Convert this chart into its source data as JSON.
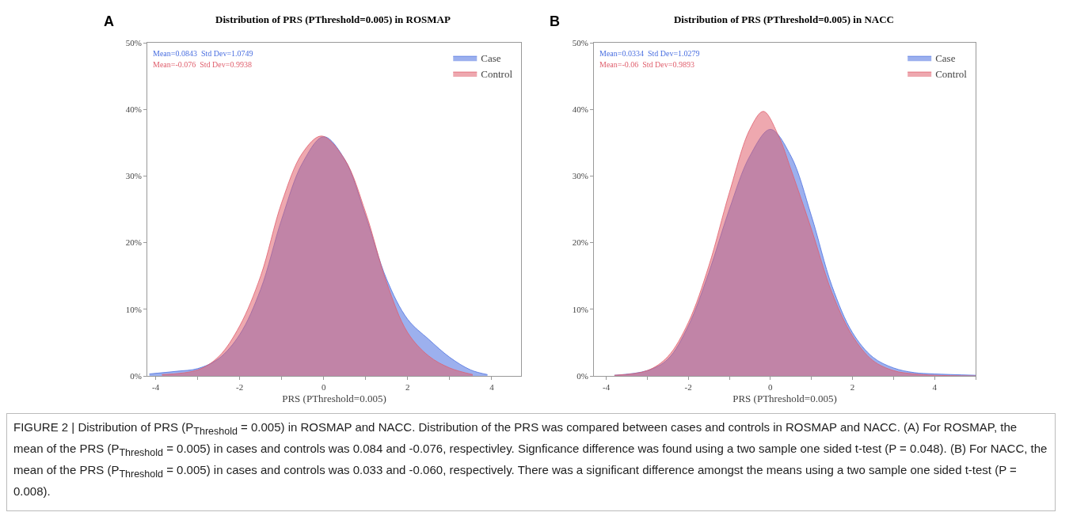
{
  "chart_data": [
    {
      "type": "area",
      "title": "Distribution of PRS (PThreshold=0.005) in ROSMAP",
      "xlabel": "PRS (PThreshold=0.005)",
      "annotations": [
        "A",
        "Mean=0.0843  Std Dev=1.0749",
        "Mean=-0.076  Std Dev=0.9938"
      ],
      "legend": "top right",
      "grid": false,
      "xlim": [
        -4.2,
        4.7
      ],
      "xticks": [
        -4,
        {
          "value": -3,
          "label": null
        },
        -2,
        {
          "value": -1,
          "label": null
        },
        0,
        {
          "value": 1,
          "label": null
        },
        2,
        {
          "value": 3,
          "label": null
        },
        4
      ],
      "ylim": [
        0,
        50
      ],
      "yticks": [
        {
          "value": 0,
          "label": "0%"
        },
        {
          "value": 10,
          "label": "10%"
        },
        {
          "value": 20,
          "label": "20%"
        },
        {
          "value": 30,
          "label": "30%"
        },
        {
          "value": 40,
          "label": "40%"
        },
        {
          "value": 50,
          "label": "50%"
        }
      ],
      "series": [
        {
          "name": "Case",
          "color": "#4a6fe0",
          "x": [
            -4.15,
            -3.5,
            -3,
            -2.5,
            -2,
            -1.5,
            -1,
            -0.5,
            0,
            0.5,
            1,
            1.5,
            2,
            2.5,
            3,
            3.5,
            3.9
          ],
          "values": [
            0.3,
            0.7,
            1.1,
            2.6,
            6.2,
            13,
            23.5,
            32,
            35.9,
            32.5,
            24,
            14.5,
            8.5,
            5.5,
            2.8,
            0.9,
            0.2
          ]
        },
        {
          "name": "Control",
          "color": "#e0606e",
          "x": [
            -3.85,
            -3,
            -2.5,
            -2,
            -1.5,
            -1,
            -0.5,
            -0.05,
            0.5,
            1,
            1.5,
            2,
            2.5,
            3,
            3.55
          ],
          "values": [
            0.2,
            0.9,
            2.9,
            7.5,
            15,
            26,
            33.5,
            36,
            32.5,
            24.5,
            14,
            6.5,
            3,
            1.2,
            0.2
          ]
        }
      ]
    },
    {
      "type": "area",
      "title": "Distribution of PRS (PThreshold=0.005) in NACC",
      "xlabel": "PRS (PThreshold=0.005)",
      "annotations": [
        "B",
        "Mean=0.0334  Std Dev=1.0279",
        "Mean=-0.06  Std Dev=0.9893"
      ],
      "legend": "top right",
      "grid": false,
      "xlim": [
        -4.3,
        5
      ],
      "xticks": [
        -4,
        {
          "value": -3,
          "label": null
        },
        -2,
        {
          "value": -1,
          "label": null
        },
        0,
        {
          "value": 1,
          "label": null
        },
        2,
        {
          "value": 3,
          "label": null
        },
        4,
        {
          "value": 5,
          "label": null
        }
      ],
      "ylim": [
        0,
        50
      ],
      "yticks": [
        {
          "value": 0,
          "label": "0%"
        },
        {
          "value": 10,
          "label": "10%"
        },
        {
          "value": 20,
          "label": "20%"
        },
        {
          "value": 30,
          "label": "30%"
        },
        {
          "value": 40,
          "label": "40%"
        },
        {
          "value": 50,
          "label": "50%"
        }
      ],
      "series": [
        {
          "name": "Case",
          "color": "#4a6fe0",
          "x": [
            -3.8,
            -3,
            -2.5,
            -2,
            -1.5,
            -1,
            -0.5,
            0,
            0.5,
            1,
            1.5,
            2,
            2.5,
            3,
            3.5,
            4,
            5
          ],
          "values": [
            0.1,
            0.8,
            2.5,
            7.5,
            15.5,
            25,
            33,
            37,
            33,
            24,
            13.5,
            6.5,
            2.8,
            1.2,
            0.5,
            0.3,
            0.1
          ]
        },
        {
          "name": "Control",
          "color": "#e0606e",
          "x": [
            -3.8,
            -3,
            -2.5,
            -2,
            -1.5,
            -1,
            -0.5,
            -0.17,
            0.2,
            0.5,
            1,
            1.5,
            2,
            2.5,
            3,
            3.5,
            4,
            5
          ],
          "values": [
            0.1,
            0.8,
            2.9,
            8,
            16.5,
            27.5,
            37,
            39.7,
            36,
            31,
            22,
            12.5,
            6,
            2.3,
            0.8,
            0.3,
            0.1,
            0
          ]
        }
      ]
    },
    {
      "type": "other",
      "annotations": [
        "FIGURE 2 | Distribution of PRS (P$_{Threshold}$ = 0.005) in ROSMAP and NACC. Distribution of the PRS was compared between cases and controls in ROSMAP and NACC. (A) For ROSMAP, the mean of the PRS (P$_{Threshold}$ = 0.005) in cases and controls was 0.084 and -0.076, respectivley. Signficance difference was found using a two sample one sided t-test (P = 0.048). (B) For NACC, the mean of the PRS (P$_{Threshold}$ = 0.005) in cases and controls was 0.033 and -0.060, respectively. There was a significant difference amongst the means using a two sample one sided t-test (P = 0.008)."
      ]
    }
  ]
}
